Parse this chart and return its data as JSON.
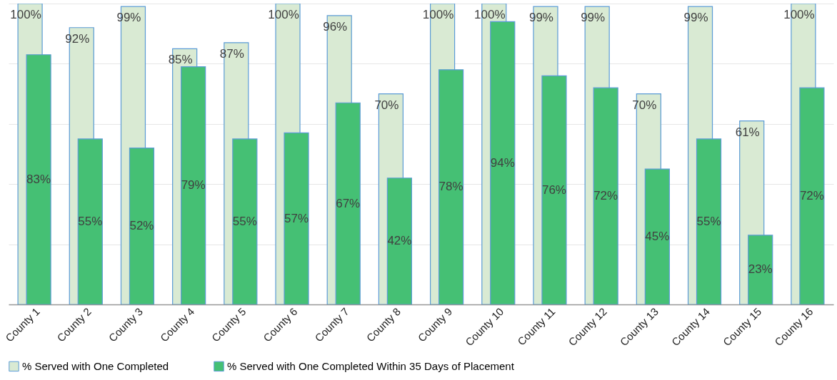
{
  "chart_data": {
    "type": "bar",
    "categories": [
      "County 1",
      "County 2",
      "County 3",
      "County 4",
      "County 5",
      "County 6",
      "County 7",
      "County 8",
      "County 9",
      "County 10",
      "County 11",
      "County 12",
      "County 13",
      "County 14",
      "County 15",
      "County 16"
    ],
    "series": [
      {
        "name": "% Served with One Completed",
        "color": "#d9ead3",
        "values": [
          100,
          92,
          99,
          85,
          87,
          100,
          96,
          70,
          100,
          100,
          99,
          99,
          70,
          99,
          61,
          100
        ],
        "value_labels": [
          "100%",
          "92%",
          "99%",
          "85%",
          "87%",
          "100%",
          "96%",
          "70%",
          "100%",
          "100%",
          "99%",
          "99%",
          "70%",
          "99%",
          "61%",
          "100%"
        ]
      },
      {
        "name": "% Served with One Completed Within 35 Days of Placement",
        "color": "#45c074",
        "values": [
          83,
          55,
          52,
          79,
          55,
          57,
          67,
          42,
          78,
          94,
          76,
          72,
          45,
          55,
          23,
          72
        ],
        "value_labels": [
          "83%",
          "55%",
          "52%",
          "79%",
          "55%",
          "57%",
          "67%",
          "42%",
          "78%",
          "94%",
          "76%",
          "72%",
          "45%",
          "55%",
          "23%",
          "72%"
        ]
      }
    ],
    "grid": "y",
    "tick_labels": "x",
    "legend": "bottom"
  }
}
